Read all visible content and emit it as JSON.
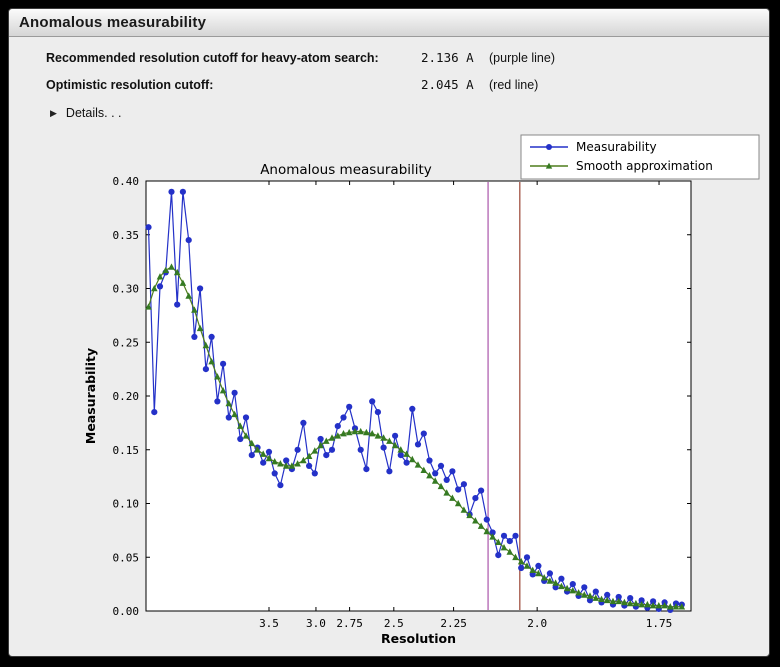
{
  "window": {
    "title": "Anomalous measurability"
  },
  "summary": {
    "rows": [
      {
        "label": "Recommended resolution cutoff for heavy-atom search:",
        "value": "2.136 A",
        "note": "(purple line)"
      },
      {
        "label": "Optimistic resolution cutoff:",
        "value": "2.045 A",
        "note": "(red line)"
      }
    ],
    "details": {
      "icon": "disclosure-triangle-right",
      "glyph": "▶",
      "label": "Details. . ."
    }
  },
  "chart_data": {
    "type": "line",
    "title": "Anomalous measurability",
    "xlabel": "Resolution",
    "ylabel": "Measurability",
    "x_axis": {
      "note": "resolution in Angstrom, axis linear in 1/d^2, d decreasing left to right",
      "s_range": [
        0.0044,
        0.3466
      ],
      "tick_d": [
        3.5,
        3.0,
        2.75,
        2.5,
        2.25,
        2.0,
        1.75
      ],
      "tick_labels": [
        "3.5",
        "3.0",
        "2.75",
        "2.5",
        "2.25",
        "2.0",
        "1.75"
      ]
    },
    "y_axis": {
      "lim": [
        0.0,
        0.4
      ],
      "ticks": [
        0.0,
        0.05,
        0.1,
        0.15,
        0.2,
        0.25,
        0.3,
        0.35,
        0.4
      ]
    },
    "legend": {
      "position": "top-right",
      "entries": [
        "Measurability",
        "Smooth approximation"
      ]
    },
    "vlines": [
      {
        "resolution": 2.136,
        "color": "#aa55aa",
        "meaning": "recommended cutoff (purple line)"
      },
      {
        "resolution": 2.045,
        "color": "#994433",
        "meaning": "optimistic cutoff (red line)"
      }
    ],
    "s": [
      0.006,
      0.0096,
      0.0132,
      0.0168,
      0.0204,
      0.024,
      0.0276,
      0.0312,
      0.0348,
      0.0384,
      0.042,
      0.0456,
      0.0492,
      0.0528,
      0.0564,
      0.06,
      0.0636,
      0.0672,
      0.0708,
      0.0744,
      0.078,
      0.0816,
      0.0852,
      0.0888,
      0.0924,
      0.096,
      0.0996,
      0.1032,
      0.1068,
      0.1104,
      0.114,
      0.1176,
      0.1212,
      0.1248,
      0.1284,
      0.132,
      0.1356,
      0.1392,
      0.1428,
      0.1464,
      0.15,
      0.1536,
      0.1572,
      0.1608,
      0.1644,
      0.168,
      0.1716,
      0.1752,
      0.1788,
      0.1824,
      0.186,
      0.1896,
      0.1932,
      0.1968,
      0.2004,
      0.204,
      0.2076,
      0.2112,
      0.2148,
      0.2184,
      0.222,
      0.2256,
      0.2292,
      0.2328,
      0.2364,
      0.24,
      0.2436,
      0.2472,
      0.2508,
      0.2544,
      0.258,
      0.2616,
      0.2652,
      0.2688,
      0.2724,
      0.276,
      0.2796,
      0.2832,
      0.2868,
      0.2904,
      0.294,
      0.2976,
      0.3012,
      0.3048,
      0.3084,
      0.312,
      0.3156,
      0.3192,
      0.3228,
      0.3264,
      0.33,
      0.3336,
      0.3372,
      0.3408
    ],
    "series": [
      {
        "name": "Measurability",
        "color": "#2431c8",
        "marker": "circle",
        "values": [
          0.357,
          0.185,
          0.302,
          0.315,
          0.39,
          0.285,
          0.39,
          0.345,
          0.255,
          0.3,
          0.225,
          0.255,
          0.195,
          0.23,
          0.18,
          0.203,
          0.16,
          0.18,
          0.145,
          0.152,
          0.138,
          0.148,
          0.128,
          0.117,
          0.14,
          0.132,
          0.15,
          0.175,
          0.135,
          0.128,
          0.16,
          0.145,
          0.15,
          0.172,
          0.18,
          0.19,
          0.17,
          0.15,
          0.132,
          0.195,
          0.185,
          0.152,
          0.13,
          0.163,
          0.145,
          0.138,
          0.188,
          0.155,
          0.165,
          0.14,
          0.128,
          0.135,
          0.122,
          0.13,
          0.113,
          0.118,
          0.09,
          0.105,
          0.112,
          0.085,
          0.073,
          0.052,
          0.07,
          0.065,
          0.07,
          0.04,
          0.05,
          0.034,
          0.042,
          0.028,
          0.035,
          0.022,
          0.03,
          0.018,
          0.025,
          0.014,
          0.022,
          0.01,
          0.018,
          0.008,
          0.015,
          0.006,
          0.013,
          0.005,
          0.012,
          0.004,
          0.01,
          0.003,
          0.009,
          0.002,
          0.008,
          0.001,
          0.007,
          0.006
        ]
      },
      {
        "name": "Smooth approximation",
        "color": "#4f7d1c",
        "marker": "triangle",
        "marker_color": "#357a22",
        "values": [
          0.283,
          0.3,
          0.311,
          0.317,
          0.32,
          0.315,
          0.305,
          0.293,
          0.28,
          0.263,
          0.247,
          0.232,
          0.218,
          0.205,
          0.193,
          0.183,
          0.172,
          0.163,
          0.156,
          0.15,
          0.146,
          0.142,
          0.139,
          0.137,
          0.135,
          0.135,
          0.137,
          0.14,
          0.144,
          0.149,
          0.154,
          0.158,
          0.161,
          0.163,
          0.165,
          0.166,
          0.167,
          0.167,
          0.166,
          0.165,
          0.163,
          0.161,
          0.158,
          0.154,
          0.15,
          0.146,
          0.141,
          0.136,
          0.131,
          0.126,
          0.121,
          0.116,
          0.11,
          0.105,
          0.1,
          0.094,
          0.089,
          0.084,
          0.079,
          0.074,
          0.069,
          0.064,
          0.059,
          0.055,
          0.05,
          0.046,
          0.042,
          0.038,
          0.035,
          0.031,
          0.028,
          0.026,
          0.023,
          0.021,
          0.019,
          0.017,
          0.015,
          0.014,
          0.012,
          0.011,
          0.01,
          0.009,
          0.009,
          0.008,
          0.007,
          0.007,
          0.006,
          0.006,
          0.005,
          0.005,
          0.005,
          0.004,
          0.004,
          0.004
        ]
      }
    ]
  }
}
